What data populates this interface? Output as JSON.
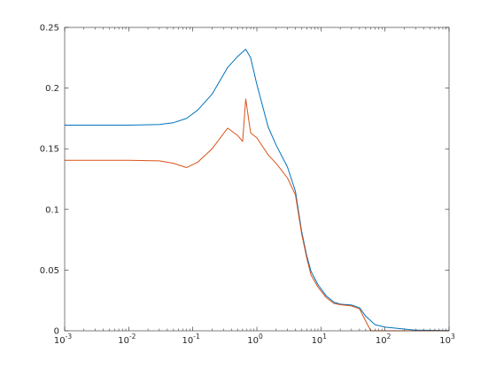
{
  "chart_data": {
    "type": "line",
    "title": "",
    "xlabel": "",
    "ylabel": "",
    "xscale": "log",
    "xlim": [
      0.001,
      1000
    ],
    "ylim": [
      0,
      0.25
    ],
    "grid": false,
    "legend": "none",
    "x_ticks": [
      {
        "value": 0.001,
        "base": "10",
        "exp": "-3"
      },
      {
        "value": 0.01,
        "base": "10",
        "exp": "-2"
      },
      {
        "value": 0.1,
        "base": "10",
        "exp": "-1"
      },
      {
        "value": 1,
        "base": "10",
        "exp": "0"
      },
      {
        "value": 10,
        "base": "10",
        "exp": "1"
      },
      {
        "value": 100,
        "base": "10",
        "exp": "2"
      },
      {
        "value": 1000,
        "base": "10",
        "exp": "3"
      }
    ],
    "y_ticks": [
      {
        "value": 0,
        "label": "0"
      },
      {
        "value": 0.05,
        "label": "0.05"
      },
      {
        "value": 0.1,
        "label": "0.1"
      },
      {
        "value": 0.15,
        "label": "0.15"
      },
      {
        "value": 0.2,
        "label": "0.2"
      },
      {
        "value": 0.25,
        "label": "0.25"
      }
    ],
    "series": [
      {
        "color": "#0072BD",
        "points": [
          [
            0.001,
            0.1695
          ],
          [
            0.01,
            0.1695
          ],
          [
            0.03,
            0.17
          ],
          [
            0.05,
            0.1715
          ],
          [
            0.08,
            0.175
          ],
          [
            0.12,
            0.182
          ],
          [
            0.2,
            0.195
          ],
          [
            0.35,
            0.217
          ],
          [
            0.5,
            0.226
          ],
          [
            0.67,
            0.232
          ],
          [
            0.8,
            0.225
          ],
          [
            1.0,
            0.203
          ],
          [
            1.5,
            0.168
          ],
          [
            2.0,
            0.153
          ],
          [
            3.0,
            0.135
          ],
          [
            4.0,
            0.115
          ],
          [
            5.0,
            0.082
          ],
          [
            6.0,
            0.062
          ],
          [
            7.0,
            0.049
          ],
          [
            9.0,
            0.038
          ],
          [
            12.0,
            0.029
          ],
          [
            16.0,
            0.0235
          ],
          [
            20.0,
            0.022
          ],
          [
            30.0,
            0.0212
          ],
          [
            40.0,
            0.019
          ],
          [
            50.0,
            0.012
          ],
          [
            70.0,
            0.005
          ],
          [
            100.0,
            0.003
          ],
          [
            200.0,
            0.0015
          ],
          [
            300.0,
            0.0005
          ],
          [
            1000.0,
            0.0002
          ]
        ]
      },
      {
        "color": "#D95319",
        "points": [
          [
            0.001,
            0.1405
          ],
          [
            0.01,
            0.1405
          ],
          [
            0.03,
            0.14
          ],
          [
            0.05,
            0.138
          ],
          [
            0.08,
            0.1345
          ],
          [
            0.12,
            0.139
          ],
          [
            0.2,
            0.15
          ],
          [
            0.35,
            0.167
          ],
          [
            0.5,
            0.161
          ],
          [
            0.6,
            0.156
          ],
          [
            0.67,
            0.191
          ],
          [
            0.8,
            0.163
          ],
          [
            1.0,
            0.159
          ],
          [
            1.5,
            0.145
          ],
          [
            2.0,
            0.138
          ],
          [
            3.0,
            0.126
          ],
          [
            4.0,
            0.112
          ],
          [
            5.0,
            0.08
          ],
          [
            6.0,
            0.06
          ],
          [
            7.0,
            0.046
          ],
          [
            9.0,
            0.036
          ],
          [
            12.0,
            0.0275
          ],
          [
            16.0,
            0.0225
          ],
          [
            20.0,
            0.0215
          ],
          [
            30.0,
            0.0205
          ],
          [
            40.0,
            0.018
          ],
          [
            50.0,
            0.008
          ],
          [
            60.0,
            0.0
          ],
          [
            1000.0,
            0.0
          ]
        ]
      }
    ]
  }
}
